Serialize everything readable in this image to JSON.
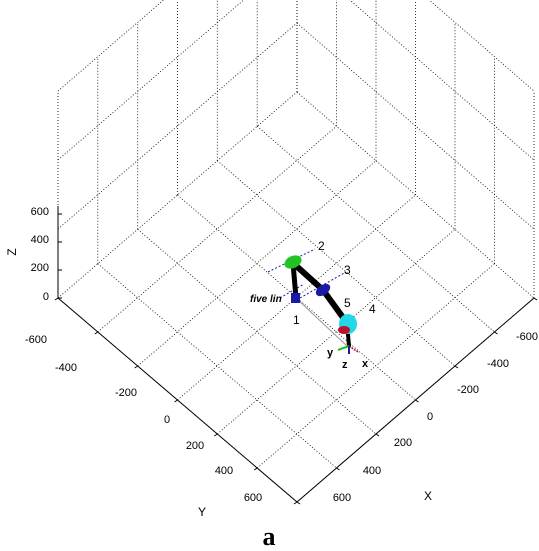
{
  "figure": {
    "caption": "a",
    "robot_label": "five lin",
    "colors": {
      "link": "#000000",
      "joint_green": "#22c222",
      "joint_blue": "#1a1aa8",
      "joint_cyan": "#22d8e8",
      "tool_red": "#c01030",
      "grid": "#000000"
    }
  },
  "chart_data": {
    "type": "scatter",
    "projection": "3d-isometric",
    "xlabel": "X",
    "ylabel": "Y",
    "zlabel": "Z",
    "xlim": [
      -600,
      600
    ],
    "ylim": [
      -600,
      600
    ],
    "zlim": [
      0,
      600
    ],
    "grid": true,
    "x_ticks": [
      "-600",
      "-400",
      "-200",
      "0",
      "200",
      "400",
      "600"
    ],
    "y_ticks": [
      "-600",
      "-400",
      "-200",
      "0",
      "200",
      "400",
      "600"
    ],
    "z_ticks": [
      "0",
      "200",
      "400",
      "600"
    ],
    "joint_labels": [
      "1",
      "2",
      "3",
      "4",
      "5"
    ],
    "frame_labels": [
      "x",
      "y",
      "z"
    ]
  }
}
